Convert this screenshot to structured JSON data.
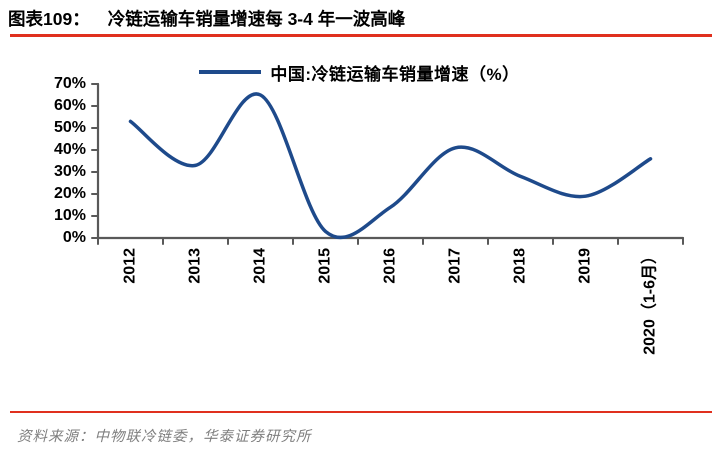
{
  "header": {
    "figure_label": "图表109：",
    "title": "冷链运输车销量增速每 3-4 年一波高峰"
  },
  "legend": {
    "label": "中国:冷链运输车销量增速（%）"
  },
  "footer": {
    "source": "资料来源：中物联冷链委，华泰证券研究所"
  },
  "colors": {
    "line": "#1E4A8B",
    "rule_red": "#E0301E",
    "axis_gray": "#595959",
    "source_gray": "#7F7F7F",
    "text_black": "#000000"
  },
  "chart_data": {
    "type": "line",
    "title": "中国:冷链运输车销量增速（%）",
    "categories": [
      "2012",
      "2013",
      "2014",
      "2015",
      "2016",
      "2017",
      "2018",
      "2019",
      "2020（1-6月）"
    ],
    "values": [
      53,
      33,
      65,
      3,
      14,
      41,
      28,
      19,
      36
    ],
    "unit": "%",
    "ylim": [
      0,
      70
    ],
    "ytick_step": 10,
    "ytick_labels": [
      "70%",
      "60%",
      "50%",
      "40%",
      "30%",
      "20%",
      "10%",
      "0%"
    ],
    "smoothed": true,
    "grid": false,
    "legend_position": "top-center",
    "xlabel": "",
    "ylabel": ""
  }
}
